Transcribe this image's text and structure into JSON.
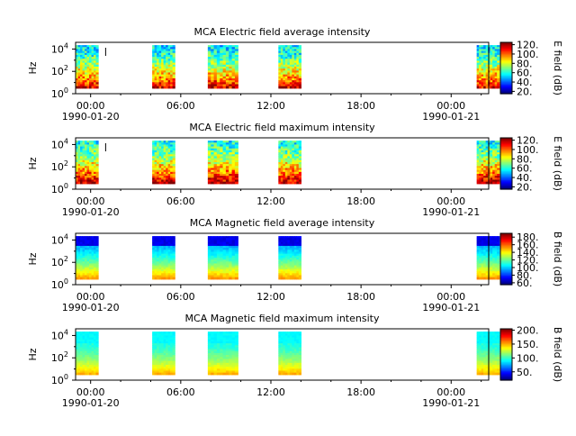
{
  "chart_data": [
    {
      "type": "heatmap",
      "title": "MCA  Electric field average intensity",
      "ylabel": "Hz",
      "y_scale": "log",
      "y_ticks": [
        {
          "base": "10",
          "exp": "0"
        },
        {
          "base": "10",
          "exp": "2"
        },
        {
          "base": "10",
          "exp": "4"
        }
      ],
      "x_ticks": [
        {
          "time": "00:00",
          "date": "1990-01-20"
        },
        {
          "time": "06:00",
          "date": ""
        },
        {
          "time": "12:00",
          "date": ""
        },
        {
          "time": "18:00",
          "date": ""
        },
        {
          "time": "00:00",
          "date": "1990-01-21"
        }
      ],
      "colorbar": {
        "label": "E field (dB)",
        "ticks": [
          "20.",
          "40.",
          "60.",
          "80.",
          "100.",
          "120."
        ],
        "range": [
          15,
          125
        ],
        "colormap": "jet"
      },
      "data_blocks_hours": [
        [
          1.5,
          3.0
        ],
        [
          6.6,
          8.1
        ],
        [
          10.3,
          12.3
        ],
        [
          15.0,
          16.5
        ],
        [
          28.2,
          29.7
        ]
      ],
      "marker_hour": 3.5,
      "style": "electric_avg"
    },
    {
      "type": "heatmap",
      "title": "MCA  Electric field maximum intensity",
      "ylabel": "Hz",
      "y_scale": "log",
      "y_ticks": [
        {
          "base": "10",
          "exp": "0"
        },
        {
          "base": "10",
          "exp": "2"
        },
        {
          "base": "10",
          "exp": "4"
        }
      ],
      "x_ticks": [
        {
          "time": "00:00",
          "date": "1990-01-20"
        },
        {
          "time": "06:00",
          "date": ""
        },
        {
          "time": "12:00",
          "date": ""
        },
        {
          "time": "18:00",
          "date": ""
        },
        {
          "time": "00:00",
          "date": "1990-01-21"
        }
      ],
      "colorbar": {
        "label": "E field (dB)",
        "ticks": [
          "20.",
          "40.",
          "60.",
          "80.",
          "100.",
          "120."
        ],
        "range": [
          15,
          125
        ],
        "colormap": "jet"
      },
      "data_blocks_hours": [
        [
          1.5,
          3.0
        ],
        [
          6.6,
          8.1
        ],
        [
          10.3,
          12.3
        ],
        [
          15.0,
          16.5
        ],
        [
          28.2,
          29.7
        ]
      ],
      "marker_hour": 3.5,
      "style": "electric_max"
    },
    {
      "type": "heatmap",
      "title": "MCA  Magnetic field average intensity",
      "ylabel": "Hz",
      "y_scale": "log",
      "y_ticks": [
        {
          "base": "10",
          "exp": "0"
        },
        {
          "base": "10",
          "exp": "2"
        },
        {
          "base": "10",
          "exp": "4"
        }
      ],
      "x_ticks": [
        {
          "time": "00:00",
          "date": "1990-01-20"
        },
        {
          "time": "06:00",
          "date": ""
        },
        {
          "time": "12:00",
          "date": ""
        },
        {
          "time": "18:00",
          "date": ""
        },
        {
          "time": "00:00",
          "date": "1990-01-21"
        }
      ],
      "colorbar": {
        "label": "B field (dB)",
        "ticks": [
          "60.",
          "80.",
          "100.",
          "120.",
          "140.",
          "160.",
          "180."
        ],
        "range": [
          55,
          190
        ],
        "colormap": "jet"
      },
      "data_blocks_hours": [
        [
          1.5,
          3.0
        ],
        [
          6.6,
          8.1
        ],
        [
          10.3,
          12.3
        ],
        [
          15.0,
          16.5
        ],
        [
          28.2,
          29.7
        ]
      ],
      "style": "magnetic_avg"
    },
    {
      "type": "heatmap",
      "title": "MCA  Magnetic field maximum intensity",
      "ylabel": "Hz",
      "y_scale": "log",
      "y_ticks": [
        {
          "base": "10",
          "exp": "0"
        },
        {
          "base": "10",
          "exp": "2"
        },
        {
          "base": "10",
          "exp": "4"
        }
      ],
      "x_ticks": [
        {
          "time": "00:00",
          "date": "1990-01-20"
        },
        {
          "time": "06:00",
          "date": ""
        },
        {
          "time": "12:00",
          "date": ""
        },
        {
          "time": "18:00",
          "date": ""
        },
        {
          "time": "00:00",
          "date": "1990-01-21"
        }
      ],
      "colorbar": {
        "label": "B field (dB)",
        "ticks": [
          "50.",
          "100.",
          "150.",
          "200."
        ],
        "range": [
          20,
          205
        ],
        "colormap": "jet"
      },
      "data_blocks_hours": [
        [
          1.5,
          3.0
        ],
        [
          6.6,
          8.1
        ],
        [
          10.3,
          12.3
        ],
        [
          15.0,
          16.5
        ],
        [
          28.2,
          29.7
        ]
      ],
      "style": "magnetic_max"
    }
  ]
}
